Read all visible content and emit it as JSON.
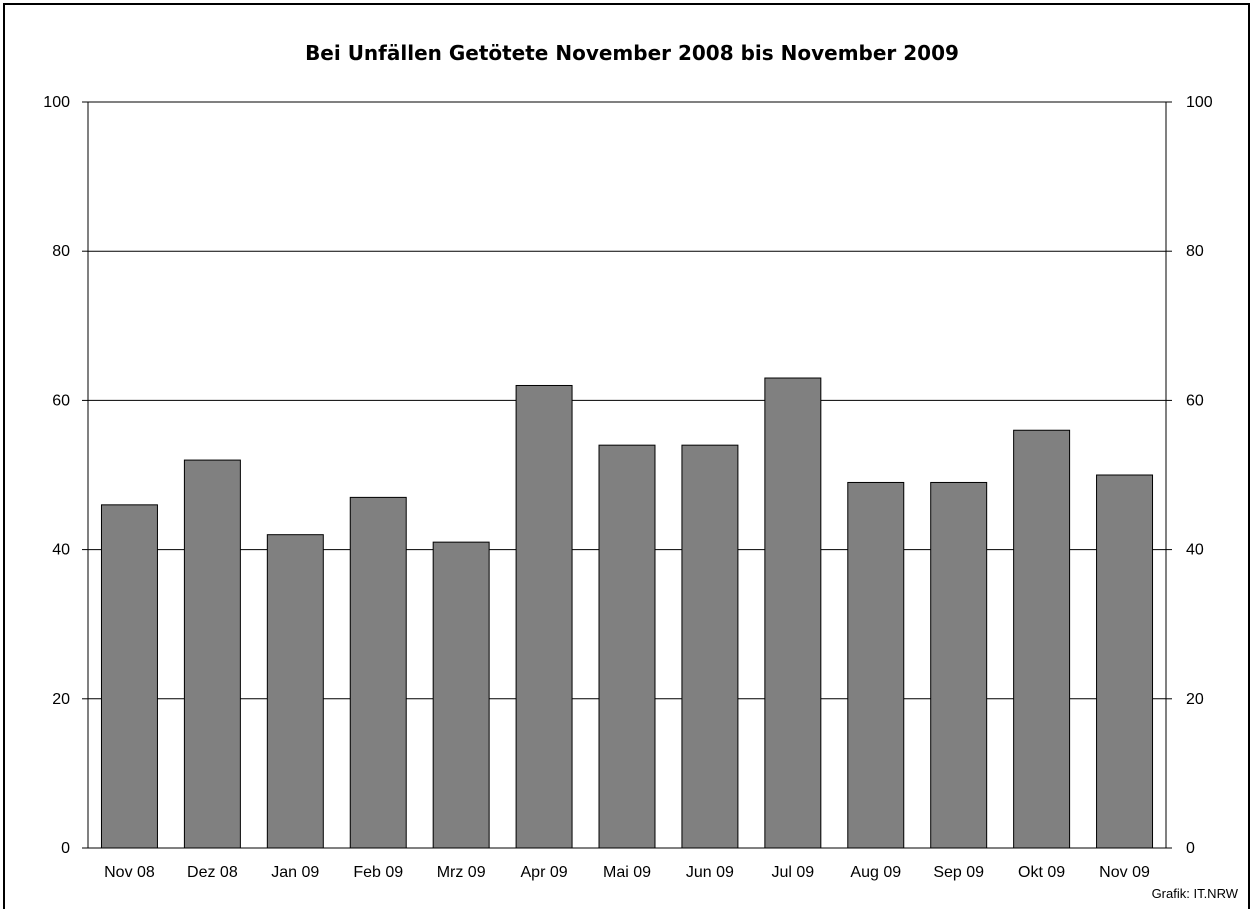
{
  "chart_data": {
    "type": "bar",
    "title": "Bei Unfällen Getötete November 2008 bis November 2009",
    "xlabel": "",
    "ylabel": "",
    "categories": [
      "Nov 08",
      "Dez 08",
      "Jan 09",
      "Feb 09",
      "Mrz 09",
      "Apr 09",
      "Mai 09",
      "Jun 09",
      "Jul 09",
      "Aug 09",
      "Sep 09",
      "Okt 09",
      "Nov 09"
    ],
    "values": [
      46,
      52,
      42,
      47,
      41,
      62,
      54,
      54,
      63,
      49,
      49,
      56,
      50
    ],
    "ylim": [
      0,
      100
    ],
    "yticks": [
      0,
      20,
      40,
      60,
      80,
      100
    ],
    "grid": true,
    "secondary_axis": "right (same scale)",
    "bar_color": "#808080",
    "credit": "Grafik: IT.NRW"
  }
}
